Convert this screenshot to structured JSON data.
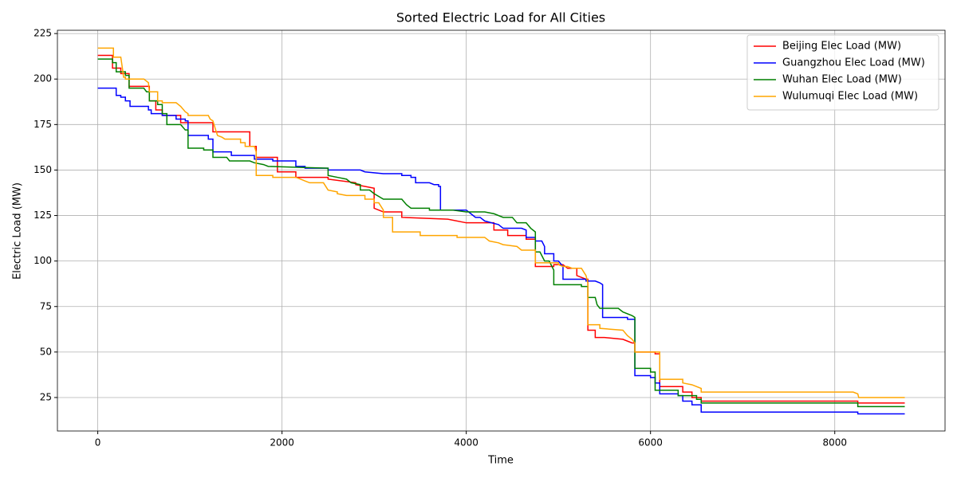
{
  "chart_data": {
    "type": "line",
    "title": "Sorted Electric Load for All Cities",
    "x_label": "Time",
    "y_label": "Electric Load (MW)",
    "xlim": [
      -438,
      9197
    ],
    "ylim": [
      6.6,
      226.8
    ],
    "xticks": [
      0,
      2000,
      4000,
      6000,
      8000
    ],
    "yticks": [
      25,
      50,
      75,
      100,
      125,
      150,
      175,
      200,
      225
    ],
    "grid": true,
    "legend": "upper right",
    "step": true,
    "series": [
      {
        "name": "Beijing Elec Load (MW)",
        "color": "#ff0000",
        "x": [
          0,
          160,
          160,
          250,
          250,
          340,
          340,
          560,
          560,
          630,
          630,
          700,
          700,
          900,
          900,
          1250,
          1250,
          1650,
          1650,
          1720,
          1720,
          1950,
          1950,
          2150,
          2150,
          2500,
          2500,
          2800,
          2800,
          3000,
          3000,
          3100,
          3300,
          3300,
          3800,
          4000,
          4300,
          4300,
          4450,
          4450,
          4650,
          4650,
          4750,
          4750,
          4950,
          4950,
          5050,
          5100,
          5200,
          5200,
          5300,
          5320,
          5320,
          5400,
          5400,
          5500,
          5700,
          5800,
          5830,
          5830,
          6050,
          6050,
          6100,
          6100,
          6350,
          6350,
          6450,
          6450,
          6550,
          6550,
          8250,
          8250,
          8760
        ],
        "values": [
          213,
          213,
          206,
          206,
          203,
          203,
          196,
          196,
          188,
          188,
          183,
          183,
          180,
          180,
          176,
          176,
          171,
          171,
          163,
          163,
          157,
          157,
          149,
          149,
          146,
          146,
          145,
          143,
          142,
          140,
          129,
          127,
          127,
          124,
          123,
          121,
          121,
          117,
          117,
          114,
          114,
          112,
          112,
          97,
          97,
          98,
          98,
          96,
          96,
          92,
          90,
          90,
          62,
          62,
          58,
          58,
          57,
          55,
          55,
          50,
          50,
          49,
          49,
          31,
          31,
          28,
          28,
          25,
          25,
          23,
          23,
          22,
          22
        ]
      },
      {
        "name": "Guangzhou Elec Load (MW)",
        "color": "#0000ff",
        "x": [
          0,
          200,
          200,
          250,
          250,
          300,
          300,
          350,
          350,
          550,
          550,
          580,
          580,
          700,
          700,
          850,
          850,
          950,
          950,
          980,
          980,
          1200,
          1200,
          1250,
          1250,
          1450,
          1450,
          1700,
          1700,
          1900,
          1900,
          2150,
          2150,
          2250,
          2250,
          2500,
          2500,
          2850,
          2900,
          3100,
          3300,
          3300,
          3400,
          3400,
          3450,
          3450,
          3600,
          3650,
          3700,
          3700,
          3720,
          3720,
          4000,
          4050,
          4100,
          4150,
          4200,
          4350,
          4400,
          4600,
          4650,
          4650,
          4750,
          4750,
          4820,
          4850,
          4850,
          4950,
          4950,
          5000,
          5050,
          5050,
          5300,
          5300,
          5400,
          5450,
          5480,
          5480,
          5750,
          5750,
          5830,
          5830,
          6000,
          6000,
          6050,
          6050,
          6100,
          6100,
          6300,
          6300,
          6350,
          6350,
          6450,
          6450,
          6550,
          6550,
          8250,
          8250,
          8760
        ],
        "values": [
          195,
          195,
          191,
          191,
          190,
          190,
          188,
          188,
          185,
          185,
          183,
          183,
          181,
          181,
          180,
          180,
          178,
          178,
          177,
          177,
          169,
          169,
          167,
          167,
          160,
          160,
          158,
          158,
          156,
          156,
          155,
          155,
          152,
          152,
          151,
          151,
          150,
          150,
          149,
          148,
          148,
          147,
          147,
          146,
          146,
          143,
          143,
          142,
          142,
          141,
          141,
          128,
          128,
          126,
          124,
          124,
          122,
          120,
          118,
          118,
          117,
          113,
          113,
          111,
          111,
          108,
          104,
          104,
          100,
          100,
          97,
          90,
          90,
          89,
          89,
          88,
          87,
          69,
          69,
          68,
          68,
          37,
          37,
          36,
          36,
          33,
          33,
          27,
          27,
          26,
          26,
          23,
          23,
          21,
          21,
          17,
          17,
          16,
          16
        ]
      },
      {
        "name": "Wuhan Elec Load (MW)",
        "color": "#008000",
        "x": [
          0,
          160,
          160,
          200,
          200,
          300,
          300,
          340,
          340,
          500,
          530,
          560,
          560,
          650,
          650,
          700,
          700,
          750,
          750,
          900,
          950,
          980,
          980,
          1150,
          1150,
          1250,
          1250,
          1400,
          1430,
          1650,
          1700,
          1800,
          1850,
          2500,
          2500,
          2600,
          2700,
          2750,
          2850,
          2850,
          2950,
          3000,
          3100,
          3300,
          3350,
          3400,
          3600,
          3600,
          3850,
          4000,
          4200,
          4300,
          4400,
          4500,
          4550,
          4650,
          4700,
          4750,
          4750,
          4800,
          4850,
          4900,
          4950,
          4950,
          5250,
          5250,
          5320,
          5320,
          5400,
          5420,
          5450,
          5650,
          5700,
          5800,
          5830,
          5830,
          6000,
          6000,
          6050,
          6050,
          6300,
          6300,
          6500,
          6500,
          6550,
          6550,
          8250,
          8250,
          8760
        ],
        "values": [
          211,
          211,
          209,
          209,
          204,
          204,
          202,
          202,
          195,
          195,
          193,
          193,
          188,
          188,
          186,
          186,
          181,
          181,
          175,
          175,
          172,
          172,
          162,
          162,
          161,
          161,
          157,
          157,
          155,
          155,
          154,
          153,
          152,
          151,
          147,
          146,
          145,
          143,
          142,
          139,
          139,
          137,
          134,
          134,
          131,
          129,
          129,
          128,
          128,
          127,
          127,
          126,
          124,
          124,
          121,
          121,
          118,
          116,
          105,
          105,
          100,
          100,
          95,
          87,
          87,
          86,
          86,
          80,
          80,
          76,
          74,
          74,
          72,
          70,
          69,
          41,
          41,
          39,
          39,
          29,
          29,
          26,
          26,
          24,
          24,
          22,
          22,
          20,
          20
        ]
      },
      {
        "name": "Wulumuqi Elec Load (MW)",
        "color": "#ffa500",
        "x": [
          0,
          170,
          170,
          250,
          270,
          280,
          300,
          300,
          500,
          550,
          560,
          650,
          650,
          700,
          700,
          850,
          900,
          950,
          980,
          980,
          1200,
          1220,
          1250,
          1280,
          1300,
          1350,
          1380,
          1550,
          1550,
          1600,
          1600,
          1700,
          1720,
          1720,
          1900,
          1900,
          2150,
          2200,
          2250,
          2300,
          2450,
          2500,
          2600,
          2600,
          2700,
          2900,
          2900,
          3000,
          3000,
          3050,
          3100,
          3100,
          3200,
          3200,
          3500,
          3500,
          3900,
          3900,
          4200,
          4250,
          4350,
          4400,
          4550,
          4600,
          4750,
          4750,
          5000,
          5000,
          5050,
          5100,
          5150,
          5250,
          5300,
          5320,
          5320,
          5450,
          5450,
          5700,
          5750,
          5800,
          5830,
          5830,
          6100,
          6100,
          6350,
          6350,
          6450,
          6550,
          6550,
          8200,
          8250,
          8260,
          8760
        ],
        "values": [
          217,
          217,
          212,
          212,
          205,
          201,
          201,
          200,
          200,
          198,
          193,
          193,
          188,
          188,
          187,
          187,
          185,
          182,
          181,
          180,
          180,
          178,
          177,
          172,
          169,
          168,
          167,
          167,
          165,
          165,
          163,
          163,
          160,
          147,
          147,
          146,
          146,
          145,
          144,
          143,
          143,
          139,
          138,
          137,
          136,
          136,
          134,
          134,
          132,
          132,
          128,
          124,
          124,
          116,
          116,
          114,
          114,
          113,
          113,
          111,
          110,
          109,
          108,
          106,
          106,
          99,
          99,
          98,
          97,
          97,
          96,
          96,
          92,
          88,
          65,
          65,
          63,
          62,
          59,
          57,
          55,
          50,
          50,
          35,
          35,
          33,
          32,
          30,
          28,
          28,
          27,
          25,
          25
        ]
      }
    ]
  }
}
